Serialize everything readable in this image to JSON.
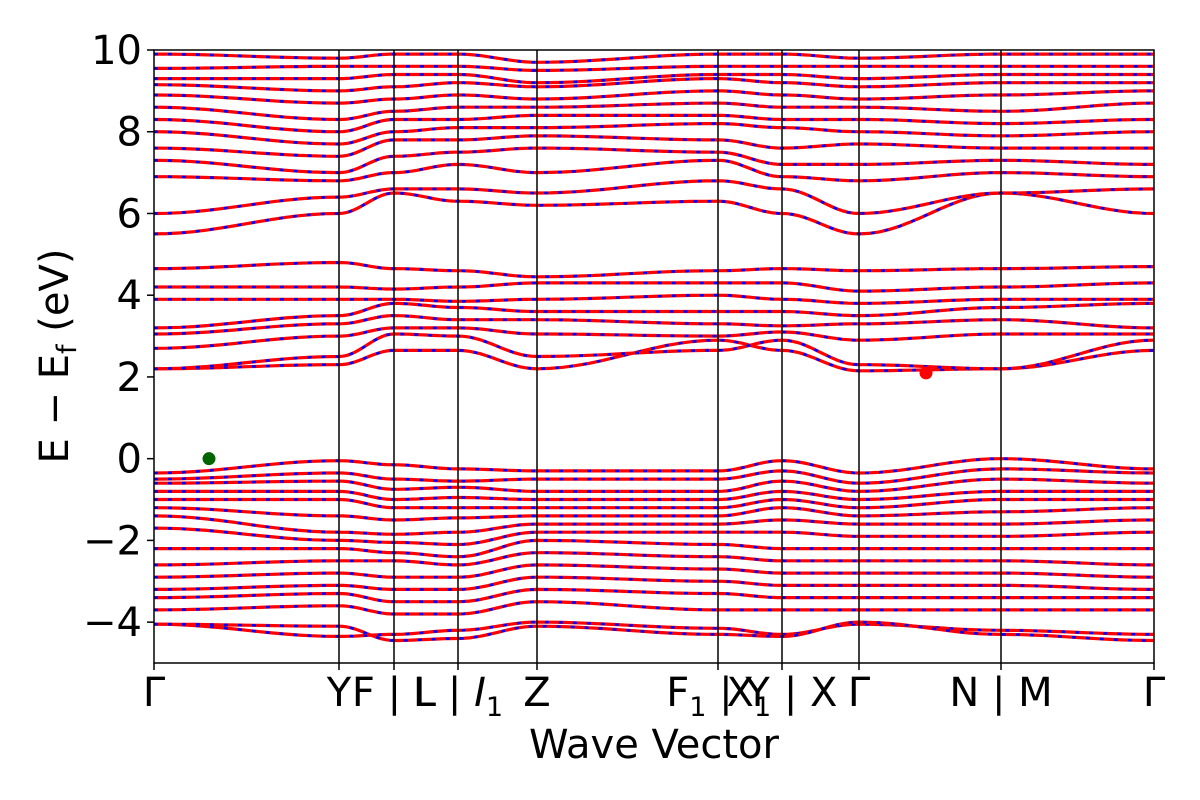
{
  "chart_data": {
    "type": "line",
    "title": "",
    "xlabel": "Wave Vector",
    "ylabel": "E − E_f (eV)",
    "ylabel_parts": {
      "prefix": "E − E",
      "subscript": "f",
      "suffix": " (eV)"
    },
    "ylim": [
      -5,
      10
    ],
    "xlim": [
      0,
      1
    ],
    "yticks": [
      -4,
      -2,
      0,
      2,
      4,
      6,
      8,
      10
    ],
    "ytick_labels": [
      "−4",
      "−2",
      "0",
      "2",
      "4",
      "6",
      "8",
      "10"
    ],
    "kpath_segments": [
      {
        "x": 0.0,
        "label": "Γ"
      },
      {
        "x": 0.185,
        "label": "Y"
      },
      {
        "x": 0.24,
        "label": "F | L"
      },
      {
        "x": 0.304,
        "label": "L | I₁"
      },
      {
        "x": 0.383,
        "label": "Z"
      },
      {
        "x": 0.564,
        "label": "F₁ | Y"
      },
      {
        "x": 0.628,
        "label": "X₁ | X"
      },
      {
        "x": 0.705,
        "label": "Γ"
      },
      {
        "x": 0.847,
        "label": "N | M"
      },
      {
        "x": 1.0,
        "label": "Γ"
      }
    ],
    "tick_labels_rendered": [
      {
        "text": "Γ",
        "sub": "",
        "italic": false
      },
      {
        "text": "Y",
        "sub": "",
        "italic": false
      },
      {
        "text": "F | L",
        "sub": "",
        "italic": false
      },
      {
        "text": "L | ",
        "tail": "I",
        "sub": "1",
        "italic": true
      },
      {
        "text": "Z",
        "sub": "",
        "italic": false
      },
      {
        "text": "F",
        "sub": "1",
        "tail": " | Y",
        "italic": true
      },
      {
        "text": "X",
        "sub": "1",
        "tail": " | X",
        "italic": false
      },
      {
        "text": "Γ",
        "sub": "",
        "italic": false
      },
      {
        "text": "N | M",
        "sub": "",
        "italic": false
      },
      {
        "text": "Γ",
        "sub": "",
        "italic": false
      }
    ],
    "band_styles": {
      "primary": {
        "color": "#ff0000",
        "style": "solid"
      },
      "overlay": {
        "color": "#0000ff",
        "style": "dashed"
      }
    },
    "markers": [
      {
        "name": "VBM",
        "x": 0.055,
        "y": 0.0,
        "color": "#006400"
      },
      {
        "name": "CBM",
        "x": 0.772,
        "y": 2.1,
        "color": "#ff0000"
      }
    ],
    "conduction_bands": [
      {
        "name": "c1",
        "values": [
          2.2,
          2.3,
          2.65,
          2.65,
          2.2,
          2.9,
          2.65,
          2.15,
          2.2,
          2.65,
          2.2
        ]
      },
      {
        "name": "c2",
        "values": [
          2.2,
          2.5,
          3.05,
          3.0,
          2.5,
          2.65,
          2.9,
          2.3,
          2.2,
          2.9,
          2.65
        ]
      },
      {
        "name": "c3",
        "values": [
          2.7,
          3.0,
          3.2,
          3.2,
          3.05,
          3.0,
          3.1,
          2.9,
          3.05,
          3.05,
          3.1
        ]
      },
      {
        "name": "c4",
        "values": [
          3.05,
          3.3,
          3.5,
          3.4,
          3.4,
          3.3,
          3.25,
          3.3,
          3.4,
          3.2,
          3.3
        ]
      },
      {
        "name": "c5",
        "values": [
          3.2,
          3.5,
          3.8,
          3.7,
          3.6,
          3.6,
          3.6,
          3.5,
          3.7,
          3.8,
          3.5
        ]
      },
      {
        "name": "c6",
        "values": [
          3.9,
          3.9,
          3.9,
          3.85,
          3.9,
          4.0,
          3.9,
          3.8,
          3.9,
          3.9,
          4.0
        ]
      },
      {
        "name": "c7",
        "values": [
          4.2,
          4.2,
          4.15,
          4.2,
          4.3,
          4.3,
          4.3,
          4.1,
          4.2,
          4.3,
          4.2
        ]
      },
      {
        "name": "c8",
        "values": [
          4.65,
          4.8,
          4.65,
          4.6,
          4.45,
          4.6,
          4.65,
          4.6,
          4.65,
          4.7,
          4.65
        ]
      },
      {
        "name": "c9",
        "values": [
          5.5,
          6.0,
          6.5,
          6.3,
          6.2,
          6.3,
          6.0,
          5.5,
          6.5,
          6.0,
          5.5
        ]
      },
      {
        "name": "c10",
        "values": [
          6.0,
          6.4,
          6.6,
          6.6,
          6.5,
          6.8,
          6.6,
          6.0,
          6.5,
          6.6,
          6.0
        ]
      },
      {
        "name": "c11",
        "values": [
          6.9,
          6.8,
          7.0,
          7.2,
          7.0,
          7.3,
          6.9,
          6.8,
          7.0,
          6.9,
          6.9
        ]
      },
      {
        "name": "c12",
        "values": [
          7.3,
          7.0,
          7.4,
          7.5,
          7.6,
          7.5,
          7.2,
          7.2,
          7.3,
          7.2,
          7.3
        ]
      },
      {
        "name": "c13",
        "values": [
          7.6,
          7.4,
          7.8,
          7.8,
          7.9,
          7.8,
          7.6,
          7.7,
          7.6,
          7.6,
          7.5
        ]
      },
      {
        "name": "c14",
        "values": [
          8.0,
          7.7,
          8.0,
          8.1,
          8.1,
          8.2,
          8.1,
          8.0,
          7.9,
          8.0,
          8.0
        ]
      },
      {
        "name": "c15",
        "values": [
          8.3,
          8.0,
          8.3,
          8.3,
          8.4,
          8.4,
          8.3,
          8.3,
          8.2,
          8.3,
          8.3
        ]
      },
      {
        "name": "c16",
        "values": [
          8.6,
          8.3,
          8.5,
          8.6,
          8.6,
          8.7,
          8.6,
          8.6,
          8.5,
          8.7,
          8.6
        ]
      },
      {
        "name": "c17",
        "values": [
          8.9,
          8.7,
          8.8,
          8.9,
          8.8,
          9.0,
          8.9,
          8.8,
          8.9,
          9.0,
          8.9
        ]
      },
      {
        "name": "c18",
        "values": [
          9.15,
          9.0,
          9.1,
          9.2,
          9.1,
          9.3,
          9.2,
          9.1,
          9.2,
          9.2,
          9.1
        ]
      },
      {
        "name": "c19",
        "values": [
          9.3,
          9.3,
          9.4,
          9.4,
          9.2,
          9.4,
          9.4,
          9.3,
          9.4,
          9.4,
          9.3
        ]
      },
      {
        "name": "c20",
        "values": [
          9.55,
          9.6,
          9.6,
          9.6,
          9.5,
          9.6,
          9.6,
          9.6,
          9.6,
          9.6,
          9.55
        ]
      },
      {
        "name": "c21",
        "values": [
          9.9,
          9.8,
          9.9,
          9.9,
          9.7,
          9.9,
          9.9,
          9.8,
          9.9,
          9.9,
          9.8
        ]
      }
    ],
    "valence_bands": [
      {
        "name": "v1",
        "values": [
          -0.35,
          -0.05,
          -0.15,
          -0.25,
          -0.3,
          -0.3,
          -0.05,
          -0.35,
          0.0,
          -0.25,
          -0.35
        ]
      },
      {
        "name": "v2",
        "values": [
          -0.5,
          -0.35,
          -0.5,
          -0.55,
          -0.5,
          -0.5,
          -0.3,
          -0.6,
          -0.25,
          -0.35,
          -0.5
        ]
      },
      {
        "name": "v3",
        "values": [
          -0.6,
          -0.55,
          -0.75,
          -0.7,
          -0.8,
          -0.8,
          -0.55,
          -0.8,
          -0.5,
          -0.6,
          -0.65
        ]
      },
      {
        "name": "v4",
        "values": [
          -0.8,
          -0.8,
          -1.0,
          -0.95,
          -1.0,
          -1.0,
          -0.8,
          -1.0,
          -0.8,
          -0.8,
          -0.85
        ]
      },
      {
        "name": "v5",
        "values": [
          -1.0,
          -1.0,
          -1.2,
          -1.2,
          -1.2,
          -1.2,
          -1.0,
          -1.2,
          -1.0,
          -1.0,
          -1.1
        ]
      },
      {
        "name": "v6",
        "values": [
          -1.2,
          -1.4,
          -1.5,
          -1.45,
          -1.4,
          -1.4,
          -1.2,
          -1.4,
          -1.3,
          -1.2,
          -1.3
        ]
      },
      {
        "name": "v7",
        "values": [
          -1.4,
          -1.8,
          -1.85,
          -1.8,
          -1.6,
          -1.6,
          -1.5,
          -1.6,
          -1.6,
          -1.5,
          -1.5
        ]
      },
      {
        "name": "v8",
        "values": [
          -1.7,
          -2.0,
          -2.05,
          -2.1,
          -1.8,
          -1.8,
          -1.8,
          -1.9,
          -1.9,
          -1.8,
          -1.8
        ]
      },
      {
        "name": "v9",
        "values": [
          -2.2,
          -2.2,
          -2.3,
          -2.4,
          -2.0,
          -2.1,
          -2.2,
          -2.2,
          -2.2,
          -2.2,
          -2.2
        ]
      },
      {
        "name": "v10",
        "values": [
          -2.6,
          -2.5,
          -2.5,
          -2.6,
          -2.3,
          -2.4,
          -2.5,
          -2.5,
          -2.5,
          -2.6,
          -2.5
        ]
      },
      {
        "name": "v11",
        "values": [
          -2.9,
          -2.8,
          -2.9,
          -2.9,
          -2.6,
          -2.7,
          -2.8,
          -2.8,
          -2.8,
          -2.9,
          -2.9
        ]
      },
      {
        "name": "v12",
        "values": [
          -3.2,
          -3.1,
          -3.2,
          -3.2,
          -2.9,
          -3.0,
          -3.1,
          -3.1,
          -3.1,
          -3.2,
          -3.2
        ]
      },
      {
        "name": "v13",
        "values": [
          -3.4,
          -3.3,
          -3.5,
          -3.5,
          -3.2,
          -3.3,
          -3.4,
          -3.4,
          -3.4,
          -3.4,
          -3.4
        ]
      },
      {
        "name": "v14",
        "values": [
          -3.7,
          -3.6,
          -3.8,
          -3.8,
          -3.5,
          -3.7,
          -3.7,
          -3.7,
          -3.7,
          -3.7,
          -3.7
        ]
      },
      {
        "name": "v15",
        "values": [
          -4.05,
          -4.35,
          -4.3,
          -4.2,
          -4.0,
          -4.15,
          -4.3,
          -4.05,
          -4.2,
          -4.3,
          -4.05
        ]
      },
      {
        "name": "v16",
        "values": [
          -4.05,
          -4.1,
          -4.45,
          -4.4,
          -4.1,
          -4.3,
          -4.35,
          -4.0,
          -4.3,
          -4.45,
          -4.1
        ]
      }
    ]
  }
}
